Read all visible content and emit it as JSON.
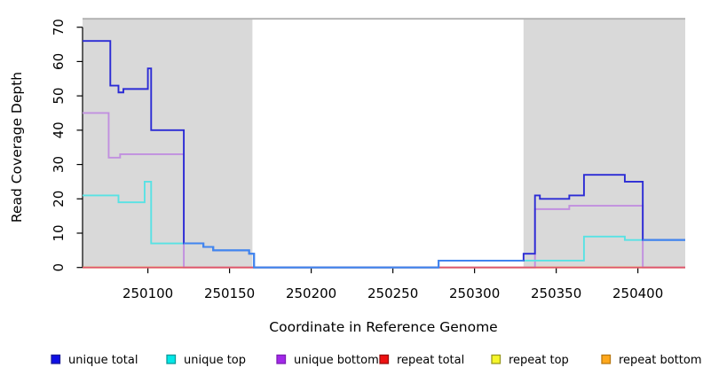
{
  "chart_data": {
    "type": "line",
    "line_style": "step",
    "title": "",
    "xlabel": "Coordinate in Reference Genome",
    "ylabel": "Read Coverage Depth",
    "xlim": [
      250060,
      250429
    ],
    "ylim": [
      0,
      70
    ],
    "x_ticks": [
      250100,
      250150,
      250200,
      250250,
      250300,
      250350,
      250400
    ],
    "y_ticks": [
      0,
      10,
      20,
      30,
      40,
      50,
      60,
      70
    ],
    "grid": false,
    "legend_position": "bottom",
    "shaded_regions": [
      {
        "x0": 250060,
        "x1": 250164,
        "color": "#d9d9d9"
      },
      {
        "x0": 250330,
        "x1": 250429,
        "color": "#d9d9d9"
      }
    ],
    "series": [
      {
        "name": "repeat top",
        "color": "#f5f500",
        "points": [
          [
            250060,
            0
          ]
        ],
        "end_x": 250429
      },
      {
        "name": "unique bottom",
        "color": "#c18fdf",
        "points": [
          [
            250060,
            45
          ],
          [
            250076,
            32
          ],
          [
            250083,
            33
          ],
          [
            250122,
            0
          ],
          [
            250337,
            17
          ],
          [
            250358,
            18
          ],
          [
            250403,
            0
          ]
        ],
        "end_x": 250429
      },
      {
        "name": "repeat total",
        "color": "#df5670",
        "points": [
          [
            250060,
            0
          ]
        ],
        "end_x": 250429
      },
      {
        "name": "repeat bottom",
        "color": "#ffa516",
        "points": [
          [
            250060,
            0
          ],
          [
            250122,
            null
          ],
          [
            250337,
            0
          ],
          [
            250403,
            null
          ]
        ],
        "end_x": 250429
      },
      {
        "name": "unique top",
        "color": "#58e2e4",
        "points": [
          [
            250060,
            21
          ],
          [
            250082,
            19
          ],
          [
            250098,
            25
          ],
          [
            250102,
            7
          ],
          [
            250134,
            6
          ],
          [
            250140,
            5
          ],
          [
            250162,
            4
          ],
          [
            250165,
            0
          ],
          [
            250278,
            2
          ],
          [
            250367,
            9
          ],
          [
            250392,
            8
          ]
        ],
        "end_x": 250429
      },
      {
        "name": "unique total",
        "color": "#2b2bd5",
        "overlap_color": "#4186f0",
        "points": [
          [
            250060,
            66
          ],
          [
            250077,
            53
          ],
          [
            250082,
            51
          ],
          [
            250085,
            52
          ],
          [
            250100,
            58
          ],
          [
            250102,
            40
          ],
          [
            250122,
            7
          ],
          [
            250134,
            6
          ],
          [
            250140,
            5
          ],
          [
            250162,
            4
          ],
          [
            250165,
            0
          ],
          [
            250278,
            2
          ],
          [
            250330,
            4
          ],
          [
            250337,
            21
          ],
          [
            250340,
            20
          ],
          [
            250358,
            21
          ],
          [
            250367,
            27
          ],
          [
            250392,
            25
          ],
          [
            250403,
            8
          ]
        ],
        "end_x": 250429
      }
    ]
  },
  "legend": {
    "items": [
      {
        "label": "unique total",
        "fill": "#0f0fe6",
        "border": "#1d1d99"
      },
      {
        "label": "unique top",
        "fill": "#00e8e8",
        "border": "#0d9a9a"
      },
      {
        "label": "unique bottom",
        "fill": "#a228ea",
        "border": "#7d1fb3"
      },
      {
        "label": "repeat total",
        "fill": "#ee1111",
        "border": "#991111"
      },
      {
        "label": "repeat top",
        "fill": "#f6f62a",
        "border": "#9a9a20"
      },
      {
        "label": "repeat bottom",
        "fill": "#ffa81c",
        "border": "#b97812"
      }
    ]
  },
  "colors": {
    "background": "#ffffff",
    "region_shade": "#d9d9d9",
    "region_top_line": "#b0b0b0",
    "axis": "#000000"
  }
}
